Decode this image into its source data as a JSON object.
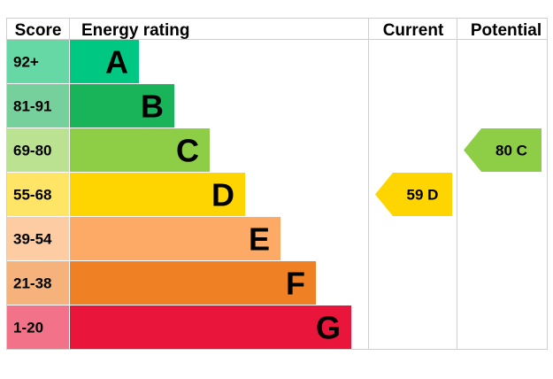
{
  "chart_data": {
    "type": "table",
    "headers": {
      "score": "Score",
      "energy_rating": "Energy rating",
      "current": "Current",
      "potential": "Potential"
    },
    "bands": [
      {
        "score": "92+",
        "letter": "A",
        "color": "#00C781",
        "score_color": "#66D8A6"
      },
      {
        "score": "81-91",
        "letter": "B",
        "color": "#19B459",
        "score_color": "#75D09B"
      },
      {
        "score": "69-80",
        "letter": "C",
        "color": "#8DCE46",
        "score_color": "#BBE290"
      },
      {
        "score": "55-68",
        "letter": "D",
        "color": "#FFD500",
        "score_color": "#FFE566"
      },
      {
        "score": "39-54",
        "letter": "E",
        "color": "#FCAA65",
        "score_color": "#FDCCA3"
      },
      {
        "score": "21-38",
        "letter": "F",
        "color": "#EF8023",
        "score_color": "#F5B37B"
      },
      {
        "score": "1-20",
        "letter": "G",
        "color": "#E9153B",
        "score_color": "#F27389"
      }
    ],
    "current": {
      "value": 59,
      "band": "D",
      "label": "59 D",
      "color": "#FFD500"
    },
    "potential": {
      "value": 80,
      "band": "C",
      "label": "80 C",
      "color": "#8DCE46"
    }
  }
}
